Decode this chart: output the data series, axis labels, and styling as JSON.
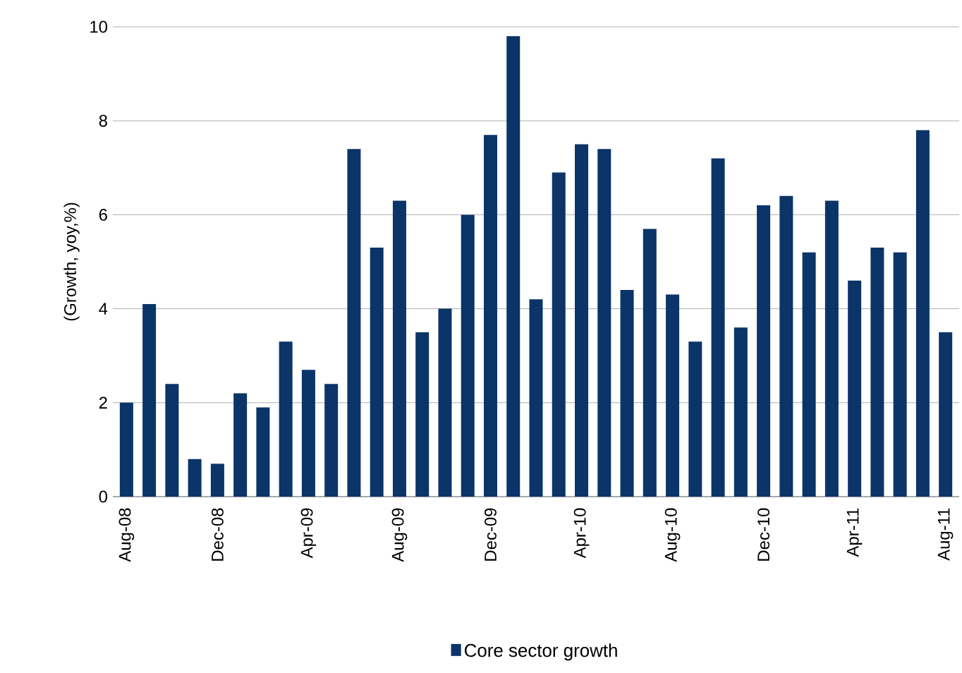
{
  "chart_data": {
    "type": "bar",
    "ylabel": "(Growth, yoy,%)",
    "categories": [
      "Aug-08",
      null,
      null,
      null,
      "Dec-08",
      null,
      null,
      null,
      "Apr-09",
      null,
      null,
      null,
      "Aug-09",
      null,
      null,
      null,
      "Dec-09",
      null,
      null,
      null,
      "Apr-10",
      null,
      null,
      null,
      "Aug-10",
      null,
      null,
      null,
      "Dec-10",
      null,
      null,
      null,
      "Apr-11",
      null,
      null,
      null,
      "Aug-11"
    ],
    "series": [
      {
        "name": "Core sector growth",
        "color": "#0b3468",
        "values": [
          2.0,
          4.1,
          2.4,
          0.8,
          0.7,
          2.2,
          1.9,
          3.3,
          2.7,
          2.4,
          7.4,
          5.3,
          6.3,
          3.5,
          4.0,
          6.0,
          7.7,
          9.8,
          4.2,
          6.9,
          7.5,
          7.4,
          4.4,
          5.7,
          4.3,
          3.3,
          7.2,
          3.6,
          6.2,
          6.4,
          5.2,
          6.3,
          4.6,
          5.3,
          5.2,
          7.8,
          3.5
        ]
      }
    ],
    "ylim": [
      0,
      10
    ],
    "yticks": [
      0,
      2,
      4,
      6,
      8,
      10
    ],
    "grid": "y",
    "legend": "bottom"
  }
}
